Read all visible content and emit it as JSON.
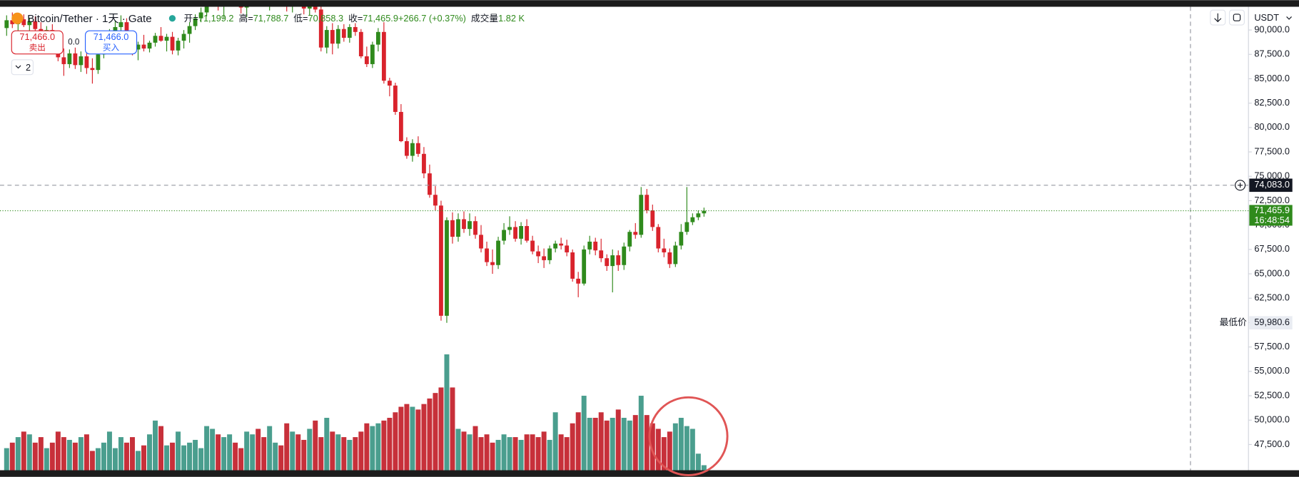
{
  "chart_data": {
    "type": "candlestick",
    "title": "Bitcoin/Tether · 1天 · Gate",
    "legend_items": [
      {
        "label": "开=",
        "value": "71,199.2"
      },
      {
        "label": "高=",
        "value": "71,788.7"
      },
      {
        "label": "低=",
        "value": "70,858.3"
      },
      {
        "label": "收=",
        "value": "71,465.9"
      },
      {
        "label": "",
        "value": "+266.7 (+0.37%)"
      },
      {
        "label": "成交量",
        "value": "1.82 K"
      }
    ],
    "sell_price": "71,466.0",
    "sell_label": "卖出",
    "spread": "0.0",
    "buy_price": "71,466.0",
    "buy_label": "买入",
    "indicator_count": "2",
    "currency": "USDT",
    "open": [
      90200,
      91000,
      90600,
      91100,
      90500,
      90900,
      90100,
      89500,
      90000,
      88400,
      87200,
      86500,
      87600,
      86400,
      87300,
      86100,
      85900,
      87500,
      88800,
      89600,
      90300,
      90800,
      89200,
      88000,
      88500,
      88100,
      88700,
      89400,
      88900,
      89300,
      87900,
      88900,
      89600,
      90400,
      91200,
      91800,
      93100,
      93700,
      92400,
      93300,
      94300,
      93600,
      92300,
      93000,
      94000,
      93500,
      92800,
      93600,
      94200,
      93300,
      92600,
      93400,
      92900,
      92200,
      92900,
      92100,
      88200,
      90000,
      88600,
      90100,
      89200,
      90300,
      89800,
      87300,
      86500,
      88500,
      89800,
      84800,
      84300,
      81600,
      78600,
      77100,
      78400,
      77300,
      75300,
      73100,
      72000,
      60700,
      70500,
      68800,
      70600,
      69600,
      70400,
      69000,
      67600,
      66200,
      65900,
      68400,
      69500,
      69800,
      68600,
      69900,
      68400,
      67300,
      66800,
      66400,
      67600,
      68100,
      67900,
      67200,
      64500,
      64000,
      67500,
      68300,
      67400,
      66600,
      65800,
      66900,
      65900,
      67800,
      69300,
      69000,
      73100,
      71500,
      69800,
      67600,
      67200,
      66000,
      67900,
      69300,
      70300,
      70800,
      71199.2
    ],
    "high": [
      91500,
      91800,
      91300,
      91600,
      91200,
      91400,
      90800,
      90400,
      90600,
      89000,
      88100,
      88000,
      88200,
      87800,
      88000,
      87100,
      87900,
      89200,
      90100,
      91000,
      91500,
      91200,
      89800,
      88800,
      89500,
      88900,
      89700,
      90300,
      89600,
      89800,
      89200,
      90000,
      90800,
      91600,
      92300,
      93500,
      94200,
      94500,
      93800,
      94800,
      95200,
      94100,
      93400,
      94400,
      94800,
      94300,
      93900,
      94700,
      94900,
      93900,
      93700,
      94300,
      93500,
      93200,
      93400,
      92600,
      90400,
      90700,
      90500,
      90600,
      90600,
      90700,
      90100,
      88300,
      88800,
      90200,
      90800,
      85100,
      84600,
      82400,
      79000,
      78800,
      79100,
      78000,
      76200,
      74000,
      72500,
      70800,
      71300,
      71200,
      71400,
      71200,
      70900,
      70000,
      68300,
      67500,
      68800,
      70200,
      70900,
      70400,
      70300,
      70600,
      68900,
      67900,
      67600,
      67900,
      68400,
      68700,
      68500,
      67500,
      65200,
      67900,
      68900,
      68700,
      68600,
      67000,
      67500,
      67400,
      68200,
      69500,
      70200,
      73900,
      73700,
      72100,
      70100,
      68600,
      67600,
      68300,
      70100,
      73900,
      71200,
      71500,
      71788.7
    ],
    "low": [
      89400,
      90200,
      89800,
      90300,
      89700,
      89900,
      88900,
      88600,
      88200,
      86800,
      85300,
      86100,
      86000,
      85700,
      85500,
      84500,
      85500,
      87100,
      88000,
      88900,
      89800,
      88700,
      87400,
      86900,
      87800,
      87700,
      88300,
      88800,
      87800,
      87500,
      87400,
      88100,
      88700,
      90000,
      90800,
      91400,
      92500,
      92000,
      91200,
      92800,
      93100,
      91700,
      91300,
      92600,
      93200,
      92400,
      92000,
      93000,
      92900,
      91900,
      91800,
      92700,
      91600,
      91500,
      91800,
      87800,
      87600,
      87500,
      88100,
      88800,
      88700,
      89400,
      87100,
      86200,
      86100,
      87800,
      84500,
      83200,
      81300,
      78500,
      76800,
      76500,
      77000,
      74800,
      72800,
      71500,
      60200,
      59980.6,
      68100,
      68300,
      69200,
      68900,
      68600,
      67200,
      65800,
      65000,
      65500,
      68000,
      69000,
      68300,
      68000,
      68200,
      67000,
      66100,
      65600,
      66000,
      67200,
      67500,
      66800,
      64200,
      62600,
      63800,
      67000,
      66900,
      66200,
      65300,
      63100,
      65300,
      65400,
      67300,
      68600,
      68700,
      71200,
      69400,
      67200,
      66700,
      65600,
      65700,
      67500,
      69000,
      70000,
      70500,
      70858.3
    ],
    "close": [
      91000,
      90600,
      91100,
      90500,
      90900,
      90100,
      89500,
      90000,
      88400,
      87200,
      86500,
      87600,
      86400,
      87300,
      86100,
      85900,
      87500,
      88800,
      89600,
      90300,
      90800,
      89200,
      88000,
      88500,
      88100,
      88700,
      89400,
      88900,
      89300,
      87900,
      88900,
      89600,
      90400,
      91200,
      91800,
      93100,
      93700,
      92400,
      93300,
      94300,
      93600,
      92300,
      93000,
      94000,
      93500,
      92800,
      93600,
      94200,
      93300,
      92600,
      93400,
      92900,
      92200,
      92900,
      92100,
      88200,
      90000,
      88600,
      90100,
      89200,
      90300,
      89800,
      87300,
      86500,
      88500,
      89800,
      84800,
      84300,
      81600,
      78600,
      77100,
      78400,
      77300,
      75300,
      73100,
      72000,
      60700,
      70500,
      68800,
      70600,
      69600,
      70400,
      69000,
      67600,
      66200,
      65900,
      68400,
      69500,
      69800,
      68600,
      69900,
      68400,
      67300,
      66800,
      66400,
      67600,
      68100,
      67900,
      67200,
      64500,
      64000,
      67500,
      68300,
      67400,
      66600,
      65800,
      66900,
      65900,
      67800,
      69300,
      69000,
      73100,
      71500,
      69800,
      67600,
      67200,
      66000,
      67900,
      69300,
      70300,
      70800,
      71199.2,
      71465.9
    ],
    "volume": [
      8,
      10,
      12,
      14,
      13,
      10,
      12,
      8,
      10,
      14,
      12,
      11,
      10,
      12,
      13,
      7,
      8,
      10,
      14,
      8,
      12,
      10,
      12,
      7,
      9,
      13,
      18,
      16,
      9,
      10,
      14,
      9,
      10,
      11,
      8,
      16,
      15,
      13,
      12,
      13,
      10,
      8,
      14,
      13,
      15,
      12,
      16,
      10,
      9,
      17,
      14,
      13,
      11,
      15,
      18,
      12,
      19,
      14,
      13,
      12,
      11,
      12,
      14,
      17,
      16,
      17,
      18,
      19,
      21,
      23,
      24,
      23,
      22,
      24,
      26,
      28,
      30,
      42,
      30,
      15,
      14,
      13,
      16,
      12,
      13,
      10,
      11,
      13,
      12,
      12,
      11,
      13,
      13,
      12,
      14,
      11,
      21,
      13,
      12,
      17,
      21,
      27,
      19,
      19,
      21,
      18,
      19,
      22,
      19,
      18,
      20,
      27,
      20,
      17,
      15,
      12,
      14,
      17,
      19,
      16,
      15,
      6,
      1.82
    ],
    "up_color": "#2f8a1c",
    "down_color": "#d9232c",
    "volume_up_color": "#4a9e8e",
    "volume_down_color": "#c7303a",
    "ylim": [
      44864,
      92381
    ],
    "yticks": [
      {
        "value": 47500,
        "label": "47,500.0"
      },
      {
        "value": 50000,
        "label": "50,000.0"
      },
      {
        "value": 52500,
        "label": "52,500.0"
      },
      {
        "value": 55000,
        "label": "55,000.0"
      },
      {
        "value": 57500,
        "label": "57,500.0"
      },
      {
        "value": 60000,
        "label": "60,000.0"
      },
      {
        "value": 62500,
        "label": "62,500.0"
      },
      {
        "value": 65000,
        "label": "65,000.0"
      },
      {
        "value": 67500,
        "label": "67,500.0"
      },
      {
        "value": 70000,
        "label": "70,000.0"
      },
      {
        "value": 72500,
        "label": "72,500.0"
      },
      {
        "value": 75000,
        "label": "75,000.0"
      },
      {
        "value": 77500,
        "label": "77,500.0"
      },
      {
        "value": 80000,
        "label": "80,000.0"
      },
      {
        "value": 82500,
        "label": "82,500.0"
      },
      {
        "value": 85000,
        "label": "85,000.0"
      },
      {
        "value": 87500,
        "label": "87,500.0"
      },
      {
        "value": 90000,
        "label": "90,000.0"
      }
    ],
    "grid": false,
    "crosshair": {
      "value": 74083,
      "label": "74,083.0"
    },
    "last_price_label": "71,465.9",
    "countdown": "16:48:54",
    "lowest": {
      "name": "最低价",
      "value": 59980.6,
      "label": "59,980.6"
    }
  }
}
